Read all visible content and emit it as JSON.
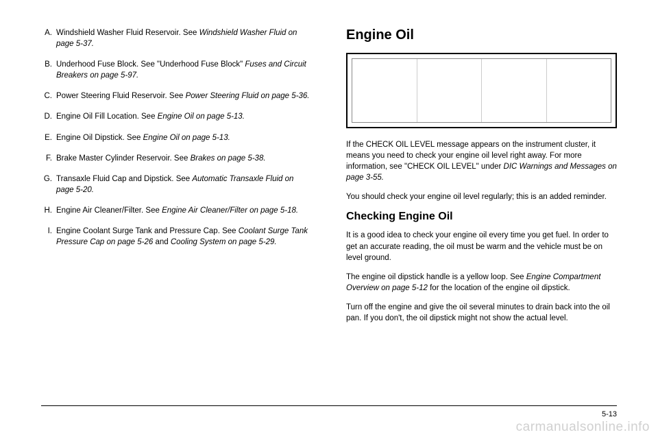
{
  "left": {
    "items": [
      {
        "letter": "A.",
        "plain": "Windshield Washer Fluid Reservoir. See ",
        "italic": "Windshield Washer Fluid on page 5-37."
      },
      {
        "letter": "B.",
        "plain": "Underhood Fuse Block. See \"Underhood Fuse Block\" ",
        "italic": "Fuses and Circuit Breakers on page 5-97."
      },
      {
        "letter": "C.",
        "plain": "Power Steering Fluid Reservoir. See ",
        "italic": "Power Steering Fluid on page 5-36."
      },
      {
        "letter": "D.",
        "plain": "Engine Oil Fill Location. See ",
        "italic": "Engine Oil on page 5-13."
      },
      {
        "letter": "E.",
        "plain": "Engine Oil Dipstick. See ",
        "italic": "Engine Oil on page 5-13."
      },
      {
        "letter": "F.",
        "plain": "Brake Master Cylinder Reservoir. See ",
        "italic": "Brakes on page 5-38."
      },
      {
        "letter": "G.",
        "plain": "Transaxle Fluid Cap and Dipstick. See ",
        "italic": "Automatic Transaxle Fluid on page 5-20."
      },
      {
        "letter": "H.",
        "plain": "Engine Air Cleaner/Filter. See ",
        "italic": "Engine Air Cleaner/Filter on page 5-18."
      },
      {
        "letter": "I.",
        "plain": "Engine Coolant Surge Tank and Pressure Cap. See ",
        "italic": "Coolant Surge Tank Pressure Cap on page 5-26",
        "plain2": " and ",
        "italic2": "Cooling System on page 5-29."
      }
    ]
  },
  "right": {
    "heading": "Engine Oil",
    "para1_a": "If the CHECK OIL LEVEL message appears on the instrument cluster, it means you need to check your engine oil level right away. For more information, see \"CHECK OIL LEVEL\" under ",
    "para1_i": "DIC Warnings and Messages on page 3-55.",
    "para2": "You should check your engine oil level regularly; this is an added reminder.",
    "subheading": "Checking Engine Oil",
    "para3": "It is a good idea to check your engine oil every time you get fuel. In order to get an accurate reading, the oil must be warm and the vehicle must be on level ground.",
    "para4_a": "The engine oil dipstick handle is a yellow loop. See ",
    "para4_i": "Engine Compartment Overview on page 5-12 ",
    "para4_b": "for the location of the engine oil dipstick.",
    "para5": "Turn off the engine and give the oil several minutes to drain back into the oil pan. If you don't, the oil dipstick might not show the actual level."
  },
  "pageNumber": "5-13",
  "watermark": "carmanualsonline.info"
}
